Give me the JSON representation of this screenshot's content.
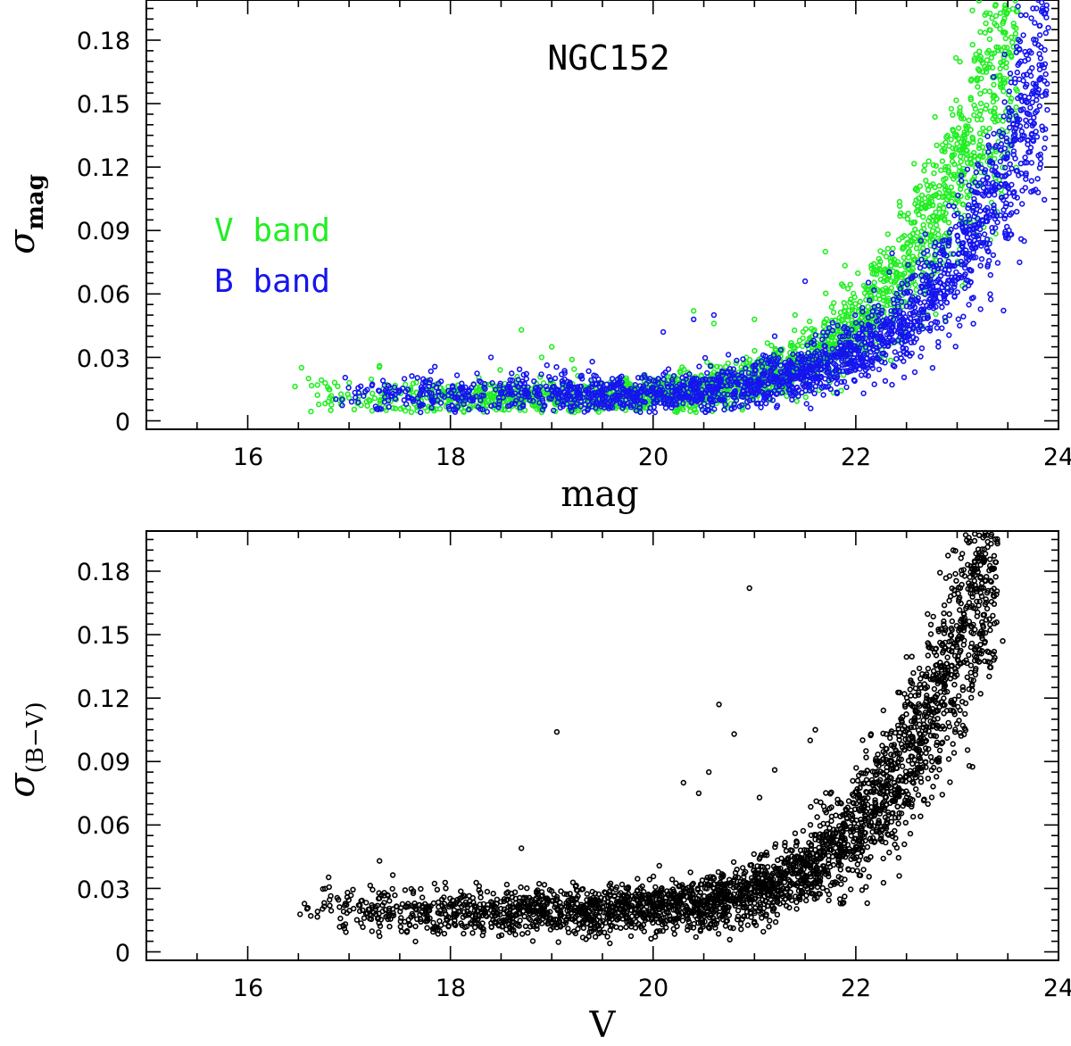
{
  "colors": {
    "v_band": "#22ee22",
    "b_band": "#1515ee",
    "color_index": "#000000"
  },
  "chart_data": [
    {
      "type": "scatter",
      "title": "NGC152",
      "xlabel": "mag",
      "ylabel_symbol": "σ",
      "ylabel_sub": "mag",
      "xlim": [
        15,
        24
      ],
      "ylim": [
        -0.004,
        0.199
      ],
      "xticks": [
        "16",
        "18",
        "20",
        "22",
        "24"
      ],
      "yticks": [
        "0",
        "0.03",
        "0.06",
        "0.09",
        "0.12",
        "0.15",
        "0.18"
      ],
      "series": [
        {
          "name": "V band",
          "color": "#22ee22",
          "base_curve": [
            [
              16.4,
              0.013
            ],
            [
              17.5,
              0.011
            ],
            [
              18.5,
              0.011
            ],
            [
              19.5,
              0.011
            ],
            [
              20.0,
              0.012
            ],
            [
              20.5,
              0.014
            ],
            [
              21.0,
              0.019
            ],
            [
              21.5,
              0.028
            ],
            [
              22.0,
              0.045
            ],
            [
              22.5,
              0.075
            ],
            [
              23.0,
              0.115
            ],
            [
              23.3,
              0.15
            ],
            [
              23.6,
              0.19
            ]
          ],
          "outliers": [
            [
              16.6,
              0.02
            ],
            [
              17.3,
              0.026
            ],
            [
              18.7,
              0.043
            ],
            [
              18.9,
              0.03
            ],
            [
              19.0,
              0.035
            ],
            [
              19.2,
              0.029
            ],
            [
              20.4,
              0.052
            ],
            [
              20.6,
              0.046
            ],
            [
              21.0,
              0.048
            ],
            [
              21.4,
              0.05
            ],
            [
              21.7,
              0.08
            ]
          ]
        },
        {
          "name": "B band",
          "color": "#1515ee",
          "base_curve": [
            [
              16.8,
              0.013
            ],
            [
              17.5,
              0.012
            ],
            [
              18.5,
              0.013
            ],
            [
              19.5,
              0.013
            ],
            [
              20.0,
              0.013
            ],
            [
              20.5,
              0.014
            ],
            [
              21.0,
              0.017
            ],
            [
              21.5,
              0.022
            ],
            [
              22.0,
              0.032
            ],
            [
              22.5,
              0.048
            ],
            [
              23.0,
              0.075
            ],
            [
              23.3,
              0.1
            ],
            [
              23.6,
              0.135
            ],
            [
              23.9,
              0.18
            ]
          ],
          "outliers": [
            [
              18.4,
              0.03
            ],
            [
              19.4,
              0.028
            ],
            [
              20.1,
              0.042
            ],
            [
              20.4,
              0.048
            ],
            [
              20.6,
              0.05
            ],
            [
              21.2,
              0.04
            ],
            [
              21.5,
              0.066
            ],
            [
              23.6,
              0.196
            ],
            [
              23.8,
              0.199
            ]
          ]
        }
      ]
    },
    {
      "type": "scatter",
      "title": "",
      "xlabel": "V",
      "ylabel_symbol": "σ",
      "ylabel_sub": "(B−V)",
      "xlim": [
        15,
        24
      ],
      "ylim": [
        -0.004,
        0.199
      ],
      "xticks": [
        "16",
        "18",
        "20",
        "22",
        "24"
      ],
      "yticks": [
        "0",
        "0.03",
        "0.06",
        "0.09",
        "0.12",
        "0.15",
        "0.18"
      ],
      "series": [
        {
          "name": "B-V",
          "color": "#000000",
          "base_curve": [
            [
              16.4,
              0.023
            ],
            [
              17.0,
              0.02
            ],
            [
              18.0,
              0.019
            ],
            [
              19.0,
              0.019
            ],
            [
              20.0,
              0.021
            ],
            [
              20.5,
              0.023
            ],
            [
              21.0,
              0.028
            ],
            [
              21.5,
              0.038
            ],
            [
              22.0,
              0.06
            ],
            [
              22.5,
              0.09
            ],
            [
              22.9,
              0.13
            ],
            [
              23.2,
              0.17
            ],
            [
              23.4,
              0.19
            ]
          ],
          "outliers": [
            [
              17.3,
              0.043
            ],
            [
              18.7,
              0.049
            ],
            [
              19.05,
              0.104
            ],
            [
              20.3,
              0.08
            ],
            [
              20.55,
              0.085
            ],
            [
              20.65,
              0.117
            ],
            [
              20.8,
              0.103
            ],
            [
              20.95,
              0.172
            ],
            [
              21.2,
              0.086
            ],
            [
              21.05,
              0.073
            ],
            [
              21.55,
              0.1
            ],
            [
              21.6,
              0.105
            ],
            [
              22.15,
              0.103
            ],
            [
              23.45,
              0.147
            ],
            [
              20.45,
              0.075
            ]
          ]
        }
      ]
    }
  ],
  "legend": {
    "v_label": "V band",
    "b_label": "B band"
  }
}
